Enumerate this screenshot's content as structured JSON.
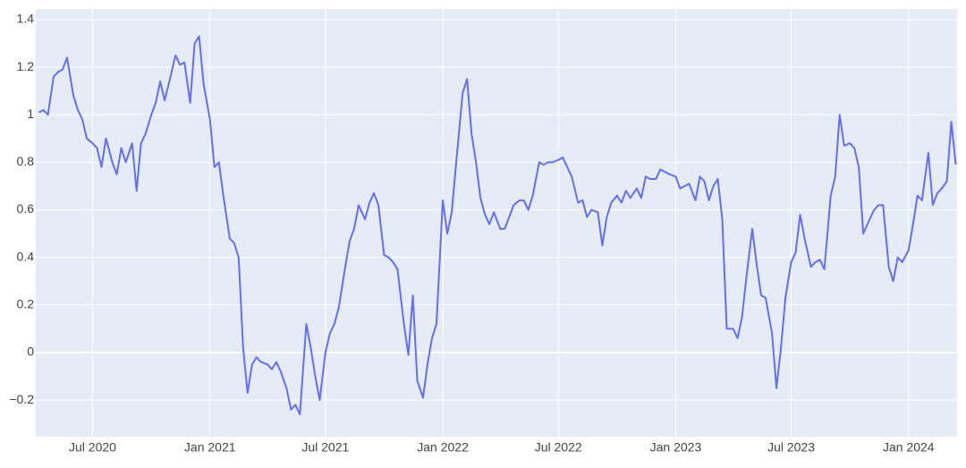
{
  "chart_data": {
    "type": "line",
    "color": "#636efa",
    "grid": true,
    "xlim": [
      "2020-04-03",
      "2024-03-17"
    ],
    "xticks": [
      {
        "value": "2020-07-01",
        "label": "Jul 2020"
      },
      {
        "value": "2021-01-01",
        "label": "Jan 2021"
      },
      {
        "value": "2021-07-01",
        "label": "Jul 2021"
      },
      {
        "value": "2022-01-01",
        "label": "Jan 2022"
      },
      {
        "value": "2022-07-01",
        "label": "Jul 2022"
      },
      {
        "value": "2023-01-01",
        "label": "Jan 2023"
      },
      {
        "value": "2023-07-01",
        "label": "Jul 2023"
      },
      {
        "value": "2024-01-01",
        "label": "Jan 2024"
      }
    ],
    "ylim": [
      -0.354,
      1.445
    ],
    "yticks": [
      {
        "value": -0.2,
        "label": "−0.2"
      },
      0,
      0.2,
      0.4,
      0.6,
      0.8,
      1,
      1.2,
      1.4
    ],
    "x": [
      "2020-04-08",
      "2020-04-15",
      "2020-04-22",
      "2020-05-01",
      "2020-05-08",
      "2020-05-15",
      "2020-05-22",
      "2020-06-01",
      "2020-06-08",
      "2020-06-15",
      "2020-06-22",
      "2020-07-01",
      "2020-07-08",
      "2020-07-15",
      "2020-07-22",
      "2020-08-01",
      "2020-08-08",
      "2020-08-15",
      "2020-08-22",
      "2020-09-01",
      "2020-09-08",
      "2020-09-15",
      "2020-09-22",
      "2020-10-01",
      "2020-10-08",
      "2020-10-15",
      "2020-10-22",
      "2020-11-01",
      "2020-11-08",
      "2020-11-15",
      "2020-11-22",
      "2020-12-01",
      "2020-12-08",
      "2020-12-15",
      "2020-12-22",
      "2021-01-01",
      "2021-01-08",
      "2021-01-15",
      "2021-01-22",
      "2021-02-01",
      "2021-02-08",
      "2021-02-15",
      "2021-02-22",
      "2021-03-01",
      "2021-03-08",
      "2021-03-15",
      "2021-03-22",
      "2021-04-01",
      "2021-04-08",
      "2021-04-15",
      "2021-04-22",
      "2021-05-01",
      "2021-05-08",
      "2021-05-15",
      "2021-05-22",
      "2021-06-01",
      "2021-06-08",
      "2021-06-15",
      "2021-06-22",
      "2021-07-01",
      "2021-07-08",
      "2021-07-15",
      "2021-07-22",
      "2021-08-01",
      "2021-08-08",
      "2021-08-15",
      "2021-08-22",
      "2021-09-01",
      "2021-09-08",
      "2021-09-15",
      "2021-09-22",
      "2021-10-01",
      "2021-10-08",
      "2021-10-15",
      "2021-10-22",
      "2021-11-01",
      "2021-11-08",
      "2021-11-15",
      "2021-11-22",
      "2021-12-01",
      "2021-12-08",
      "2021-12-15",
      "2021-12-22",
      "2022-01-01",
      "2022-01-08",
      "2022-01-15",
      "2022-01-22",
      "2022-02-01",
      "2022-02-08",
      "2022-02-15",
      "2022-02-22",
      "2022-03-01",
      "2022-03-08",
      "2022-03-15",
      "2022-03-22",
      "2022-04-01",
      "2022-04-08",
      "2022-04-15",
      "2022-04-22",
      "2022-05-01",
      "2022-05-08",
      "2022-05-15",
      "2022-05-22",
      "2022-06-01",
      "2022-06-08",
      "2022-06-15",
      "2022-06-22",
      "2022-07-01",
      "2022-07-08",
      "2022-07-15",
      "2022-07-22",
      "2022-08-01",
      "2022-08-08",
      "2022-08-15",
      "2022-08-22",
      "2022-09-01",
      "2022-09-08",
      "2022-09-15",
      "2022-09-22",
      "2022-10-01",
      "2022-10-08",
      "2022-10-15",
      "2022-10-22",
      "2022-11-01",
      "2022-11-08",
      "2022-11-15",
      "2022-11-22",
      "2022-12-01",
      "2022-12-08",
      "2022-12-15",
      "2022-12-22",
      "2023-01-01",
      "2023-01-08",
      "2023-01-15",
      "2023-01-22",
      "2023-02-01",
      "2023-02-08",
      "2023-02-15",
      "2023-02-22",
      "2023-03-01",
      "2023-03-08",
      "2023-03-15",
      "2023-03-22",
      "2023-04-01",
      "2023-04-08",
      "2023-04-15",
      "2023-04-22",
      "2023-05-01",
      "2023-05-08",
      "2023-05-15",
      "2023-05-22",
      "2023-06-01",
      "2023-06-08",
      "2023-06-15",
      "2023-06-22",
      "2023-07-01",
      "2023-07-08",
      "2023-07-15",
      "2023-07-22",
      "2023-08-01",
      "2023-08-08",
      "2023-08-15",
      "2023-08-22",
      "2023-09-01",
      "2023-09-08",
      "2023-09-15",
      "2023-09-22",
      "2023-10-01",
      "2023-10-08",
      "2023-10-15",
      "2023-10-22",
      "2023-11-01",
      "2023-11-08",
      "2023-11-15",
      "2023-11-22",
      "2023-12-01",
      "2023-12-08",
      "2023-12-15",
      "2023-12-22",
      "2024-01-01",
      "2024-01-08",
      "2024-01-15",
      "2024-01-22",
      "2024-02-01",
      "2024-02-08",
      "2024-02-15",
      "2024-02-22",
      "2024-03-01",
      "2024-03-08",
      "2024-03-15"
    ],
    "values": [
      1.01,
      1.02,
      1.0,
      1.16,
      1.18,
      1.19,
      1.24,
      1.08,
      1.02,
      0.98,
      0.9,
      0.88,
      0.86,
      0.78,
      0.9,
      0.8,
      0.75,
      0.86,
      0.8,
      0.88,
      0.68,
      0.88,
      0.92,
      1.0,
      1.05,
      1.14,
      1.06,
      1.17,
      1.25,
      1.21,
      1.22,
      1.05,
      1.3,
      1.33,
      1.13,
      0.98,
      0.78,
      0.8,
      0.66,
      0.48,
      0.46,
      0.4,
      0.02,
      -0.17,
      -0.05,
      -0.02,
      -0.04,
      -0.05,
      -0.07,
      -0.04,
      -0.08,
      -0.15,
      -0.24,
      -0.22,
      -0.26,
      0.12,
      0.02,
      -0.1,
      -0.2,
      0.0,
      0.08,
      0.12,
      0.19,
      0.36,
      0.47,
      0.52,
      0.62,
      0.56,
      0.63,
      0.67,
      0.62,
      0.41,
      0.4,
      0.38,
      0.35,
      0.12,
      -0.01,
      0.24,
      -0.12,
      -0.19,
      -0.05,
      0.06,
      0.12,
      0.64,
      0.5,
      0.59,
      0.8,
      1.09,
      1.15,
      0.92,
      0.8,
      0.65,
      0.58,
      0.54,
      0.59,
      0.52,
      0.52,
      0.57,
      0.62,
      0.64,
      0.64,
      0.6,
      0.66,
      0.8,
      0.79,
      0.8,
      0.8,
      0.81,
      0.82,
      0.78,
      0.74,
      0.63,
      0.64,
      0.57,
      0.6,
      0.59,
      0.45,
      0.57,
      0.63,
      0.66,
      0.63,
      0.68,
      0.65,
      0.69,
      0.65,
      0.74,
      0.73,
      0.73,
      0.77,
      0.76,
      0.75,
      0.74,
      0.69,
      0.7,
      0.71,
      0.64,
      0.74,
      0.72,
      0.64,
      0.7,
      0.73,
      0.56,
      0.1,
      0.1,
      0.06,
      0.15,
      0.32,
      0.52,
      0.37,
      0.24,
      0.23,
      0.08,
      -0.15,
      0.02,
      0.23,
      0.38,
      0.42,
      0.58,
      0.48,
      0.36,
      0.38,
      0.39,
      0.35,
      0.66,
      0.74,
      1.0,
      0.87,
      0.88,
      0.86,
      0.78,
      0.5,
      0.56,
      0.6,
      0.62,
      0.62,
      0.36,
      0.3,
      0.4,
      0.38,
      0.43,
      0.54,
      0.66,
      0.64,
      0.84,
      0.62,
      0.67,
      0.69,
      0.72,
      0.97,
      0.79
    ]
  }
}
